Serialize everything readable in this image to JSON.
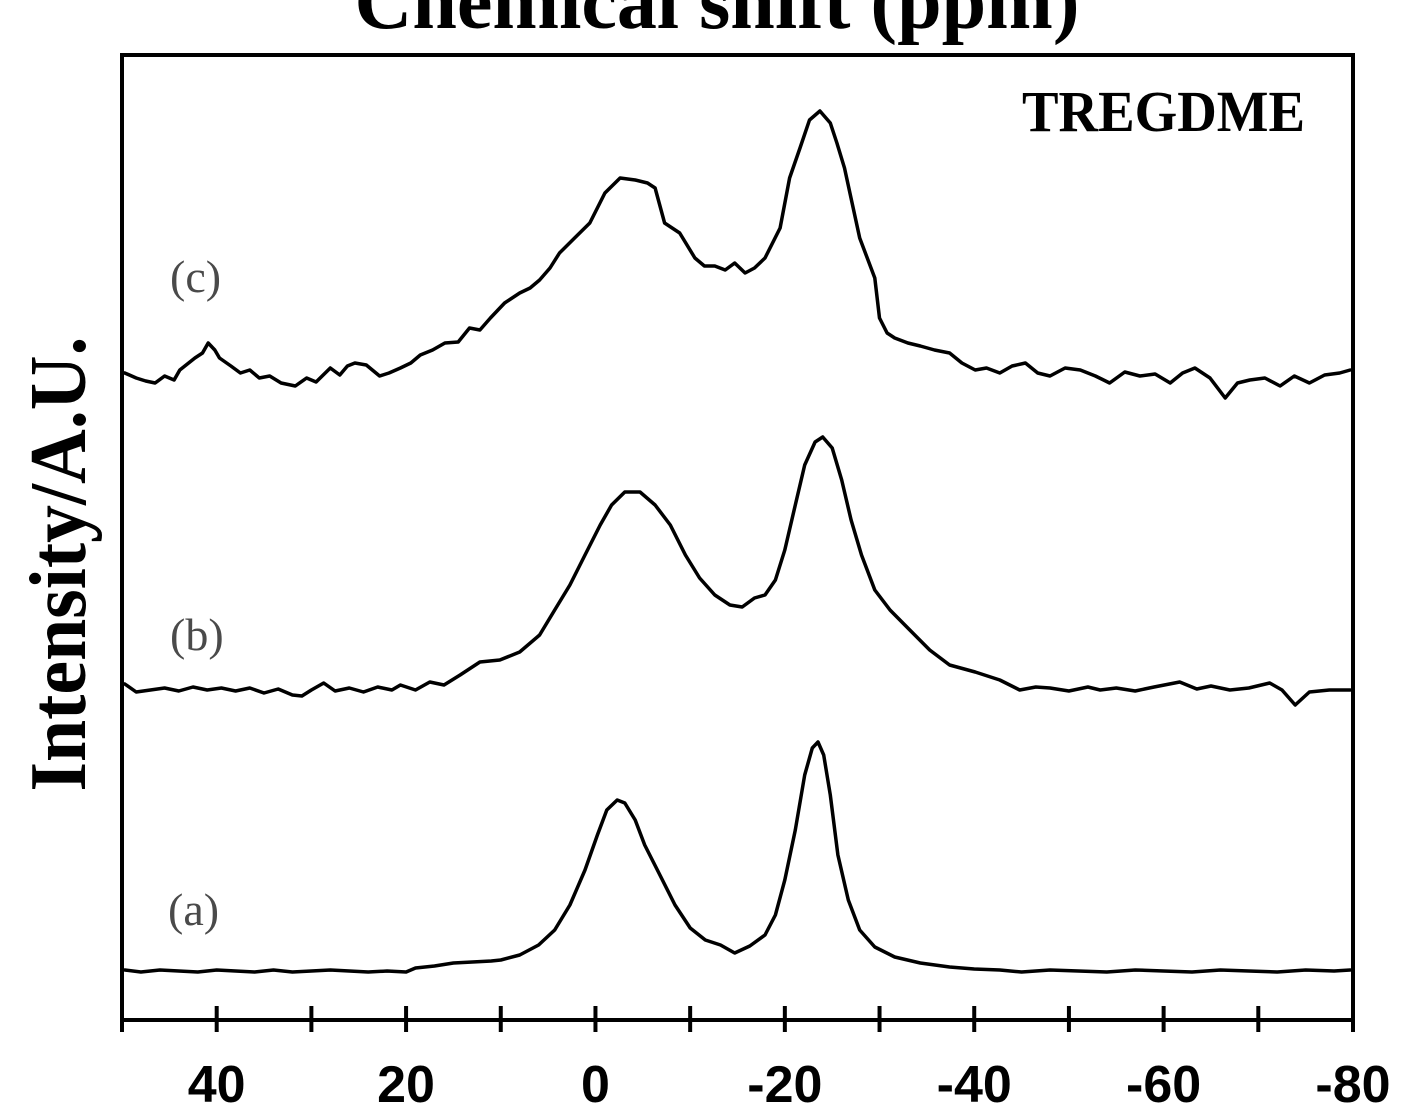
{
  "chart_data": {
    "type": "line",
    "title": "Chemical shift (ppm)",
    "ylabel": "Intensity/A.U.",
    "annotation": "TREGDME",
    "xlim": [
      50,
      -80
    ],
    "x_reversed": true,
    "grid": false,
    "xticks": {
      "values": [
        40,
        20,
        0,
        -20,
        -40,
        -60,
        -80
      ],
      "labels": [
        "40",
        "20",
        "0",
        "-20",
        "-40",
        "-60",
        "-80"
      ]
    },
    "series": [
      {
        "name": "(a)",
        "points": [
          [
            49.7,
            0.01
          ],
          [
            48,
            -0.01
          ],
          [
            46,
            0.01
          ],
          [
            44,
            0
          ],
          [
            42,
            -0.01
          ],
          [
            40,
            0.01
          ],
          [
            38,
            0
          ],
          [
            36,
            -0.01
          ],
          [
            34,
            0.01
          ],
          [
            32,
            -0.01
          ],
          [
            30,
            0
          ],
          [
            28,
            0.01
          ],
          [
            26,
            0
          ],
          [
            24,
            -0.01
          ],
          [
            22,
            0
          ],
          [
            20,
            -0.01
          ],
          [
            19,
            0.03
          ],
          [
            17,
            0.05
          ],
          [
            15,
            0.08
          ],
          [
            13,
            0.09
          ],
          [
            11,
            0.1
          ],
          [
            10,
            0.11
          ],
          [
            8,
            0.16
          ],
          [
            6,
            0.26
          ],
          [
            4.3,
            0.41
          ],
          [
            2.7,
            0.66
          ],
          [
            1.1,
            1.01
          ],
          [
            -0.2,
            1.36
          ],
          [
            -1.2,
            1.61
          ],
          [
            -2.3,
            1.71
          ],
          [
            -3.1,
            1.68
          ],
          [
            -4.2,
            1.51
          ],
          [
            -5.2,
            1.26
          ],
          [
            -6.8,
            0.96
          ],
          [
            -8.4,
            0.66
          ],
          [
            -10,
            0.43
          ],
          [
            -11.6,
            0.31
          ],
          [
            -13.2,
            0.26
          ],
          [
            -14.7,
            0.18
          ],
          [
            -16.3,
            0.25
          ],
          [
            -17.9,
            0.36
          ],
          [
            -19,
            0.56
          ],
          [
            -20,
            0.91
          ],
          [
            -21.1,
            1.41
          ],
          [
            -22.1,
            1.96
          ],
          [
            -22.9,
            2.23
          ],
          [
            -23.5,
            2.29
          ],
          [
            -24.1,
            2.16
          ],
          [
            -24.8,
            1.76
          ],
          [
            -25.6,
            1.16
          ],
          [
            -26.7,
            0.71
          ],
          [
            -27.9,
            0.41
          ],
          [
            -29.5,
            0.24
          ],
          [
            -31.6,
            0.14
          ],
          [
            -34.3,
            0.08
          ],
          [
            -37.4,
            0.04
          ],
          [
            -40,
            0.02
          ],
          [
            -42.7,
            0.01
          ],
          [
            -45,
            -0.01
          ],
          [
            -48,
            0.01
          ],
          [
            -51,
            0
          ],
          [
            -54,
            -0.01
          ],
          [
            -57,
            0.01
          ],
          [
            -60,
            0
          ],
          [
            -63,
            -0.01
          ],
          [
            -66,
            0.01
          ],
          [
            -69,
            0
          ],
          [
            -72,
            -0.01
          ],
          [
            -75,
            0.01
          ],
          [
            -78,
            0
          ],
          [
            -79.7,
            0.01
          ]
        ]
      },
      {
        "name": "(b)",
        "points": [
          [
            49.7,
            0.06
          ],
          [
            48.5,
            -0.02
          ],
          [
            47,
            0
          ],
          [
            45.5,
            0.02
          ],
          [
            44,
            -0.01
          ],
          [
            42.5,
            0.03
          ],
          [
            41,
            0
          ],
          [
            39.5,
            0.02
          ],
          [
            38,
            -0.01
          ],
          [
            36.5,
            0.02
          ],
          [
            35,
            -0.03
          ],
          [
            33.5,
            0.01
          ],
          [
            32,
            -0.05
          ],
          [
            31,
            -0.06
          ],
          [
            30,
            0
          ],
          [
            28.7,
            0.07
          ],
          [
            27.5,
            -0.01
          ],
          [
            26,
            0.02
          ],
          [
            24.5,
            -0.02
          ],
          [
            23,
            0.03
          ],
          [
            21.5,
            0
          ],
          [
            20.6,
            0.05
          ],
          [
            19,
            0
          ],
          [
            17.5,
            0.08
          ],
          [
            16,
            0.05
          ],
          [
            14.3,
            0.15
          ],
          [
            12.2,
            0.28
          ],
          [
            10.1,
            0.3
          ],
          [
            8,
            0.38
          ],
          [
            5.9,
            0.55
          ],
          [
            4.3,
            0.8
          ],
          [
            2.7,
            1.05
          ],
          [
            1.1,
            1.35
          ],
          [
            -0.5,
            1.65
          ],
          [
            -1.7,
            1.85
          ],
          [
            -3.1,
            1.98
          ],
          [
            -4.7,
            1.98
          ],
          [
            -6.3,
            1.85
          ],
          [
            -7.9,
            1.65
          ],
          [
            -9.5,
            1.35
          ],
          [
            -11,
            1.12
          ],
          [
            -12.6,
            0.95
          ],
          [
            -14.2,
            0.85
          ],
          [
            -15.5,
            0.83
          ],
          [
            -16.8,
            0.92
          ],
          [
            -17.9,
            0.95
          ],
          [
            -19,
            1.1
          ],
          [
            -20,
            1.4
          ],
          [
            -21.1,
            1.85
          ],
          [
            -22.1,
            2.25
          ],
          [
            -23.2,
            2.48
          ],
          [
            -24,
            2.53
          ],
          [
            -25,
            2.42
          ],
          [
            -26,
            2.1
          ],
          [
            -27,
            1.7
          ],
          [
            -28.1,
            1.35
          ],
          [
            -29.5,
            1.0
          ],
          [
            -31.1,
            0.8
          ],
          [
            -33.2,
            0.6
          ],
          [
            -35.3,
            0.4
          ],
          [
            -37.4,
            0.25
          ],
          [
            -40.1,
            0.18
          ],
          [
            -42.7,
            0.1
          ],
          [
            -44.8,
            0
          ],
          [
            -46.5,
            0.03
          ],
          [
            -48,
            0.02
          ],
          [
            -50,
            -0.01
          ],
          [
            -52,
            0.03
          ],
          [
            -53.3,
            0
          ],
          [
            -55,
            0.02
          ],
          [
            -57,
            -0.01
          ],
          [
            -59,
            0.03
          ],
          [
            -61.7,
            0.08
          ],
          [
            -63.5,
            0.01
          ],
          [
            -65,
            0.04
          ],
          [
            -67,
            0
          ],
          [
            -69,
            0.02
          ],
          [
            -71.2,
            0.07
          ],
          [
            -72.5,
            0
          ],
          [
            -73.9,
            -0.15
          ],
          [
            -75.4,
            -0.02
          ],
          [
            -77.5,
            0
          ],
          [
            -79.7,
            0
          ]
        ]
      },
      {
        "name": "(c)",
        "points": [
          [
            49.7,
            0.05
          ],
          [
            48.5,
            0
          ],
          [
            47.5,
            -0.03
          ],
          [
            46.5,
            -0.05
          ],
          [
            45.5,
            0.02
          ],
          [
            44.5,
            -0.02
          ],
          [
            43.9,
            0.08
          ],
          [
            42.3,
            0.2
          ],
          [
            41.5,
            0.25
          ],
          [
            40.9,
            0.35
          ],
          [
            40.2,
            0.28
          ],
          [
            39.7,
            0.2
          ],
          [
            38.5,
            0.12
          ],
          [
            37.5,
            0.05
          ],
          [
            36.5,
            0.08
          ],
          [
            35.5,
            0
          ],
          [
            34.4,
            0.02
          ],
          [
            33.2,
            -0.05
          ],
          [
            31.7,
            -0.08
          ],
          [
            30.5,
            0
          ],
          [
            29.5,
            -0.04
          ],
          [
            28,
            0.1
          ],
          [
            27,
            0.03
          ],
          [
            26.2,
            0.12
          ],
          [
            25.4,
            0.15
          ],
          [
            24.2,
            0.13
          ],
          [
            22.8,
            0.02
          ],
          [
            21.8,
            0.05
          ],
          [
            20.6,
            0.1
          ],
          [
            19.5,
            0.15
          ],
          [
            18.5,
            0.23
          ],
          [
            17.2,
            0.28
          ],
          [
            15.9,
            0.35
          ],
          [
            14.5,
            0.36
          ],
          [
            13.3,
            0.5
          ],
          [
            12.2,
            0.48
          ],
          [
            11.1,
            0.6
          ],
          [
            9.6,
            0.75
          ],
          [
            8,
            0.85
          ],
          [
            6.9,
            0.9
          ],
          [
            5.9,
            0.98
          ],
          [
            4.8,
            1.1
          ],
          [
            3.8,
            1.25
          ],
          [
            2.2,
            1.4
          ],
          [
            0.6,
            1.55
          ],
          [
            -1,
            1.85
          ],
          [
            -2.6,
            2.0
          ],
          [
            -4.2,
            1.98
          ],
          [
            -5.5,
            1.95
          ],
          [
            -6.3,
            1.9
          ],
          [
            -7.3,
            1.55
          ],
          [
            -8.9,
            1.45
          ],
          [
            -10.5,
            1.2
          ],
          [
            -11.5,
            1.12
          ],
          [
            -12.6,
            1.12
          ],
          [
            -13.7,
            1.08
          ],
          [
            -14.7,
            1.15
          ],
          [
            -15.8,
            1.05
          ],
          [
            -16.8,
            1.1
          ],
          [
            -17.9,
            1.2
          ],
          [
            -19.5,
            1.5
          ],
          [
            -20.5,
            2.0
          ],
          [
            -21.6,
            2.3
          ],
          [
            -22.6,
            2.58
          ],
          [
            -23.7,
            2.67
          ],
          [
            -24.8,
            2.55
          ],
          [
            -25.5,
            2.35
          ],
          [
            -26.3,
            2.1
          ],
          [
            -27.1,
            1.75
          ],
          [
            -27.9,
            1.4
          ],
          [
            -29.5,
            1.0
          ],
          [
            -30,
            0.6
          ],
          [
            -30.8,
            0.45
          ],
          [
            -31.6,
            0.4
          ],
          [
            -33,
            0.35
          ],
          [
            -34.3,
            0.32
          ],
          [
            -35.8,
            0.28
          ],
          [
            -37.4,
            0.25
          ],
          [
            -38.7,
            0.15
          ],
          [
            -40.1,
            0.08
          ],
          [
            -41.3,
            0.1
          ],
          [
            -42.7,
            0.05
          ],
          [
            -44,
            0.12
          ],
          [
            -45.4,
            0.15
          ],
          [
            -46.7,
            0.05
          ],
          [
            -48,
            0.02
          ],
          [
            -49.6,
            0.1
          ],
          [
            -51.2,
            0.08
          ],
          [
            -52.8,
            0.02
          ],
          [
            -54.3,
            -0.05
          ],
          [
            -55.9,
            0.06
          ],
          [
            -57.5,
            0.02
          ],
          [
            -59.1,
            0.04
          ],
          [
            -60.7,
            -0.05
          ],
          [
            -62,
            0.05
          ],
          [
            -63.3,
            0.1
          ],
          [
            -64.9,
            0
          ],
          [
            -66.5,
            -0.2
          ],
          [
            -67.8,
            -0.05
          ],
          [
            -69.1,
            -0.02
          ],
          [
            -70.7,
            0
          ],
          [
            -72.3,
            -0.08
          ],
          [
            -73.8,
            0.02
          ],
          [
            -75.4,
            -0.05
          ],
          [
            -77,
            0.03
          ],
          [
            -78.6,
            0.05
          ],
          [
            -79.7,
            0.08
          ]
        ]
      }
    ]
  }
}
